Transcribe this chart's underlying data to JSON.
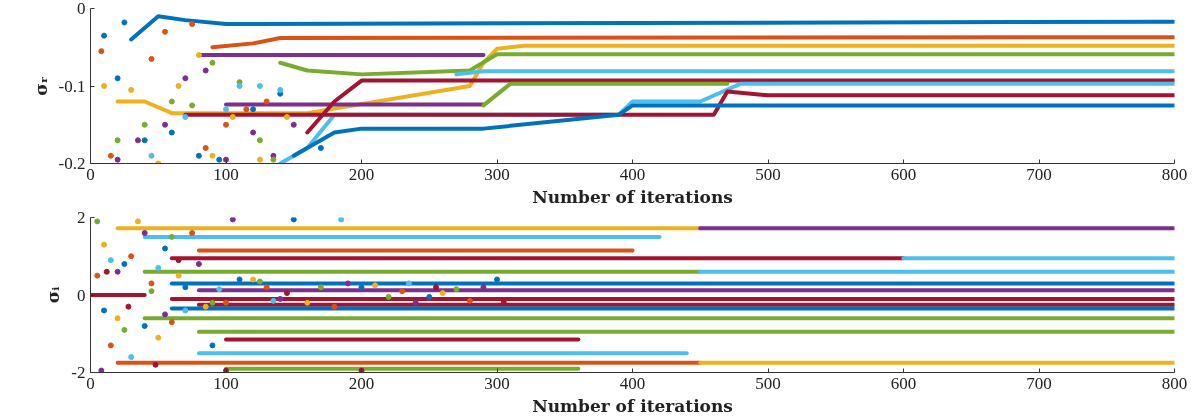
{
  "chart_data": [
    {
      "type": "line",
      "xlabel": "Number of iterations",
      "ylabel": "σᵣ",
      "xlim": [
        0,
        800
      ],
      "ylim": [
        -0.2,
        0
      ],
      "xticks": [
        0,
        100,
        200,
        300,
        400,
        500,
        600,
        700,
        800
      ],
      "yticks": [
        0,
        -0.1,
        -0.2
      ],
      "line_style": "solid",
      "series": [
        {
          "color": "#0072bd",
          "x": [
            30,
            50,
            70,
            100,
            800
          ],
          "values": [
            -0.04,
            -0.01,
            -0.015,
            -0.02,
            -0.017
          ]
        },
        {
          "color": "#d95319",
          "x": [
            90,
            120,
            140,
            800
          ],
          "values": [
            -0.05,
            -0.045,
            -0.038,
            -0.037
          ]
        },
        {
          "color": "#edb120",
          "x": [
            20,
            40,
            60,
            160,
            280,
            290,
            300,
            320,
            800
          ],
          "values": [
            -0.12,
            -0.12,
            -0.135,
            -0.135,
            -0.1,
            -0.07,
            -0.052,
            -0.048,
            -0.048
          ]
        },
        {
          "color": "#7e2f8e",
          "x": [
            80,
            290
          ],
          "values": [
            -0.06,
            -0.06
          ]
        },
        {
          "color": "#7e2f8e",
          "x": [
            100,
            290
          ],
          "values": [
            -0.124,
            -0.124
          ]
        },
        {
          "color": "#77ac30",
          "x": [
            140,
            160,
            200,
            280,
            300,
            800
          ],
          "values": [
            -0.07,
            -0.08,
            -0.085,
            -0.08,
            -0.059,
            -0.059
          ]
        },
        {
          "color": "#4dbeee",
          "x": [
            270,
            290,
            800
          ],
          "values": [
            -0.085,
            -0.081,
            -0.081
          ]
        },
        {
          "color": "#a2142f",
          "x": [
            160,
            180,
            200,
            800
          ],
          "values": [
            -0.16,
            -0.12,
            -0.093,
            -0.093
          ]
        },
        {
          "color": "#77ac30",
          "x": [
            290,
            310,
            470
          ],
          "values": [
            -0.125,
            -0.097,
            -0.097
          ]
        },
        {
          "color": "#4dbeee",
          "x": [
            140,
            160,
            180,
            390,
            400,
            450,
            480,
            800
          ],
          "values": [
            -0.2,
            -0.18,
            -0.137,
            -0.137,
            -0.12,
            -0.12,
            -0.097,
            -0.097
          ]
        },
        {
          "color": "#a2142f",
          "x": [
            70,
            460,
            470,
            500,
            800
          ],
          "values": [
            -0.137,
            -0.137,
            -0.107,
            -0.112,
            -0.112
          ]
        },
        {
          "color": "#0072bd",
          "x": [
            150,
            180,
            200,
            290,
            390,
            400,
            800
          ],
          "values": [
            -0.19,
            -0.16,
            -0.155,
            -0.155,
            -0.137,
            -0.125,
            -0.125
          ]
        },
        {
          "type": "scatter",
          "color": "#0072bd",
          "x": [
            10,
            20,
            25,
            40,
            60,
            80,
            95,
            120,
            140,
            170
          ],
          "values": [
            -0.035,
            -0.09,
            -0.018,
            -0.17,
            -0.16,
            -0.19,
            -0.195,
            -0.13,
            -0.11,
            -0.18
          ]
        },
        {
          "type": "scatter",
          "color": "#d95319",
          "x": [
            8,
            15,
            45,
            55,
            75,
            85,
            100,
            115,
            130
          ],
          "values": [
            -0.055,
            -0.19,
            -0.065,
            -0.03,
            -0.02,
            -0.18,
            -0.15,
            -0.13,
            -0.12
          ]
        },
        {
          "type": "scatter",
          "color": "#edb120",
          "x": [
            10,
            30,
            50,
            65,
            80,
            90,
            105,
            125,
            145
          ],
          "values": [
            -0.1,
            -0.105,
            -0.2,
            -0.1,
            -0.06,
            -0.19,
            -0.14,
            -0.195,
            -0.14
          ]
        },
        {
          "type": "scatter",
          "color": "#7e2f8e",
          "x": [
            20,
            35,
            55,
            70,
            85,
            100,
            120,
            135,
            150
          ],
          "values": [
            -0.195,
            -0.17,
            -0.15,
            -0.09,
            -0.08,
            -0.195,
            -0.16,
            -0.19,
            -0.15
          ]
        },
        {
          "type": "scatter",
          "color": "#77ac30",
          "x": [
            20,
            40,
            60,
            75,
            90,
            110,
            125,
            135
          ],
          "values": [
            -0.17,
            -0.15,
            -0.12,
            -0.125,
            -0.07,
            -0.095,
            -0.17,
            -0.195
          ]
        },
        {
          "type": "scatter",
          "color": "#4dbeee",
          "x": [
            45,
            70,
            100,
            110,
            125,
            140
          ],
          "values": [
            -0.19,
            -0.14,
            -0.13,
            -0.1,
            -0.1,
            -0.105
          ]
        }
      ]
    },
    {
      "type": "line",
      "xlabel": "Number of iterations",
      "ylabel": "σᵢ",
      "xlim": [
        0,
        800
      ],
      "ylim": [
        -2,
        2
      ],
      "xticks": [
        0,
        100,
        200,
        300,
        400,
        500,
        600,
        700,
        800
      ],
      "yticks": [
        2,
        0,
        -2
      ],
      "line_style": "solid",
      "series": [
        {
          "color": "#edb120",
          "x": [
            20,
            450
          ],
          "values": [
            1.72,
            1.72
          ]
        },
        {
          "color": "#7e2f8e",
          "x": [
            450,
            800
          ],
          "values": [
            1.72,
            1.72
          ]
        },
        {
          "color": "#4dbeee",
          "x": [
            40,
            420
          ],
          "values": [
            1.5,
            1.5
          ]
        },
        {
          "color": "#d95319",
          "x": [
            80,
            400
          ],
          "values": [
            1.15,
            1.15
          ]
        },
        {
          "color": "#a2142f",
          "x": [
            60,
            600
          ],
          "values": [
            0.95,
            0.95
          ]
        },
        {
          "color": "#4dbeee",
          "x": [
            600,
            800
          ],
          "values": [
            0.95,
            0.95
          ]
        },
        {
          "color": "#77ac30",
          "x": [
            40,
            450
          ],
          "values": [
            0.6,
            0.6
          ]
        },
        {
          "color": "#4dbeee",
          "x": [
            450,
            800
          ],
          "values": [
            0.6,
            0.6
          ]
        },
        {
          "color": "#0072bd",
          "x": [
            60,
            800
          ],
          "values": [
            0.3,
            0.3
          ]
        },
        {
          "color": "#7e2f8e",
          "x": [
            80,
            800
          ],
          "values": [
            0.12,
            0.12
          ]
        },
        {
          "color": "#a2142f",
          "x": [
            0,
            40
          ],
          "values": [
            0,
            0
          ]
        },
        {
          "color": "#a2142f",
          "x": [
            60,
            800
          ],
          "values": [
            -0.1,
            -0.1
          ]
        },
        {
          "color": "#a2142f",
          "x": [
            80,
            800
          ],
          "values": [
            -0.25,
            -0.25
          ]
        },
        {
          "color": "#0072bd",
          "x": [
            60,
            800
          ],
          "values": [
            -0.35,
            -0.35
          ]
        },
        {
          "color": "#77ac30",
          "x": [
            40,
            800
          ],
          "values": [
            -0.6,
            -0.6
          ]
        },
        {
          "color": "#77ac30",
          "x": [
            80,
            800
          ],
          "values": [
            -0.95,
            -0.95
          ]
        },
        {
          "color": "#a2142f",
          "x": [
            100,
            360
          ],
          "values": [
            -1.15,
            -1.15
          ]
        },
        {
          "color": "#4dbeee",
          "x": [
            80,
            440
          ],
          "values": [
            -1.5,
            -1.5
          ]
        },
        {
          "color": "#d95319",
          "x": [
            20,
            450
          ],
          "values": [
            -1.75,
            -1.75
          ]
        },
        {
          "color": "#edb120",
          "x": [
            450,
            800
          ],
          "values": [
            -1.75,
            -1.75
          ]
        },
        {
          "color": "#77ac30",
          "x": [
            100,
            360
          ],
          "values": [
            -1.9,
            -1.9
          ]
        },
        {
          "type": "scatter",
          "color": "#0072bd",
          "x": [
            10,
            25,
            40,
            55,
            70,
            90,
            110,
            150,
            200,
            250,
            300
          ],
          "values": [
            -0.4,
            0.8,
            -0.8,
            1.2,
            0.2,
            -1.3,
            0.4,
            1.95,
            0.2,
            -0.05,
            0.4
          ]
        },
        {
          "type": "scatter",
          "color": "#d95319",
          "x": [
            5,
            15,
            30,
            45,
            60,
            75,
            100,
            130,
            180,
            230,
            280
          ],
          "values": [
            0.5,
            -1.3,
            1.0,
            0.3,
            -0.7,
            1.6,
            -0.2,
            0.2,
            -0.3,
            0.1,
            -0.15
          ]
        },
        {
          "type": "scatter",
          "color": "#edb120",
          "x": [
            10,
            20,
            35,
            50,
            65,
            85,
            120,
            160,
            210,
            260
          ],
          "values": [
            1.3,
            -0.6,
            1.9,
            -1.1,
            0.5,
            -0.3,
            0.4,
            -0.2,
            0.25,
            0.05
          ]
        },
        {
          "type": "scatter",
          "color": "#7e2f8e",
          "x": [
            8,
            20,
            40,
            55,
            80,
            105,
            140,
            190,
            240,
            290
          ],
          "values": [
            -1.95,
            0.6,
            1.6,
            -0.5,
            0.8,
            1.95,
            -0.1,
            0.3,
            -0.2,
            0.2
          ]
        },
        {
          "type": "scatter",
          "color": "#77ac30",
          "x": [
            5,
            25,
            45,
            60,
            90,
            125,
            170,
            220,
            270
          ],
          "values": [
            1.9,
            -0.9,
            0.1,
            1.5,
            -0.2,
            0.35,
            0.2,
            -0.05,
            0.15
          ]
        },
        {
          "type": "scatter",
          "color": "#4dbeee",
          "x": [
            15,
            30,
            50,
            70,
            95,
            135,
            185,
            235
          ],
          "values": [
            0.9,
            -1.6,
            0.7,
            -0.4,
            0.15,
            -0.15,
            1.95,
            0.3
          ]
        },
        {
          "type": "scatter",
          "color": "#a2142f",
          "x": [
            12,
            28,
            48,
            65,
            100,
            145,
            200,
            255,
            305
          ],
          "values": [
            0.6,
            -0.3,
            -1.8,
            0.9,
            -1.95,
            0.05,
            -1.95,
            0.2,
            -0.2
          ]
        }
      ]
    }
  ]
}
